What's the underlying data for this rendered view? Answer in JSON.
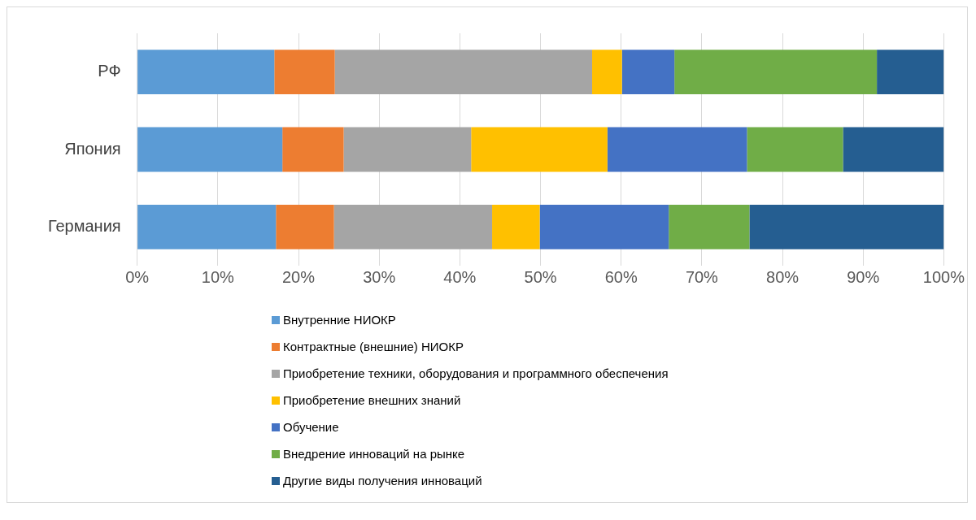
{
  "chart_data": {
    "type": "bar",
    "orientation": "horizontal",
    "stacked": true,
    "categories": [
      "РФ",
      "Япония",
      "Германия"
    ],
    "series": [
      {
        "name": "Внутренние НИОКР",
        "color": "#5b9bd5",
        "values": [
          17.0,
          18.0,
          17.2
        ]
      },
      {
        "name": "Контрактные (внешние) НИОКР",
        "color": "#ed7d31",
        "values": [
          7.5,
          7.6,
          7.2
        ]
      },
      {
        "name": "Приобретение техники, оборудования и программного обеспечения",
        "color": "#a5a5a5",
        "values": [
          31.9,
          15.8,
          19.6
        ]
      },
      {
        "name": "Приобретение внешних знаний",
        "color": "#ffc000",
        "values": [
          3.7,
          16.9,
          5.9
        ]
      },
      {
        "name": "Обучение",
        "color": "#4472c4",
        "values": [
          6.5,
          17.3,
          16.0
        ]
      },
      {
        "name": "Внедрение инноваций на рынке",
        "color": "#70ad47",
        "values": [
          25.1,
          11.9,
          10.0
        ]
      },
      {
        "name": "Другие виды получения инноваций",
        "color": "#255e91",
        "values": [
          8.3,
          12.5,
          24.1
        ]
      }
    ],
    "xlim": [
      0,
      100
    ],
    "xticks": [
      {
        "value": 0,
        "label": "0%"
      },
      {
        "value": 10,
        "label": "10%"
      },
      {
        "value": 20,
        "label": "20%"
      },
      {
        "value": 30,
        "label": "30%"
      },
      {
        "value": 40,
        "label": "40%"
      },
      {
        "value": 50,
        "label": "50%"
      },
      {
        "value": 60,
        "label": "60%"
      },
      {
        "value": 70,
        "label": "70%"
      },
      {
        "value": 80,
        "label": "80%"
      },
      {
        "value": 90,
        "label": "90%"
      },
      {
        "value": 100,
        "label": "100%"
      }
    ],
    "grid": "x",
    "legend": "bottom"
  }
}
